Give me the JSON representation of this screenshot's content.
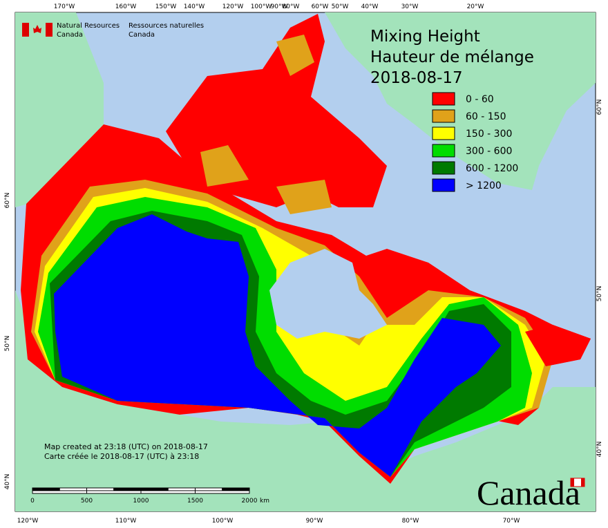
{
  "header": {
    "agency_en": [
      "Natural Resources",
      "Canada"
    ],
    "agency_fr": [
      "Ressources naturelles",
      "Canada"
    ],
    "title": [
      "Mixing Height",
      "Hauteur de mélange",
      "2018-08-17"
    ]
  },
  "legend": [
    {
      "label": "0 - 60",
      "color": "#ff0000"
    },
    {
      "label": "60 - 150",
      "color": "#e0a21a"
    },
    {
      "label": "150 - 300",
      "color": "#ffff00"
    },
    {
      "label": "300 - 600",
      "color": "#00dd00"
    },
    {
      "label": "600 - 1200",
      "color": "#007a00"
    },
    {
      "label": "> 1200",
      "color": "#0000ff"
    }
  ],
  "graticule": {
    "top": [
      "170°W",
      "160°W",
      "150°W",
      "140°W",
      "120°W",
      "100°W",
      "90°W",
      "80°W",
      "60°W",
      "50°W",
      "40°W",
      "30°W",
      "20°W"
    ],
    "bottom": [
      "120°W",
      "110°W",
      "100°W",
      "90°W",
      "80°W",
      "70°W"
    ],
    "left": [
      "60°N",
      "50°N",
      "40°N"
    ],
    "right": [
      "60°N",
      "50°N",
      "40°N"
    ]
  },
  "scale_bar": {
    "labels": [
      "0",
      "500",
      "1000",
      "1500",
      "2000"
    ],
    "unit": "km"
  },
  "footer": [
    "Map created at 23:18 (UTC) on 2018-08-17",
    "Carte créée le 2018-08-17 (UTC) à 23:18"
  ],
  "wordmark": "Canada"
}
